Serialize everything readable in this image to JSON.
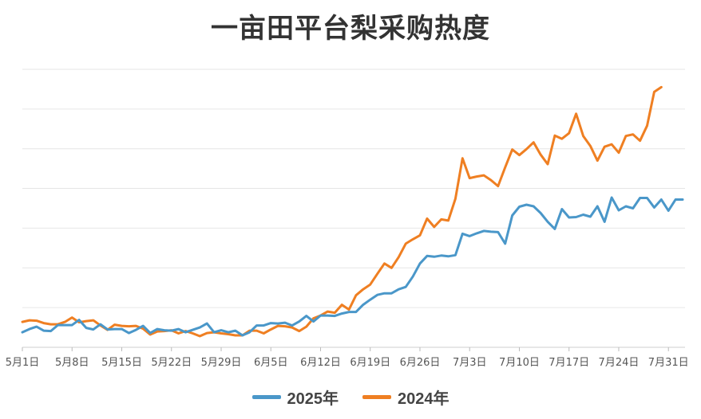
{
  "chart_data": {
    "type": "line",
    "title": "一亩田平台梨采购热度",
    "xlabel": "",
    "ylabel": "",
    "x_tick_labels": [
      "5月1日",
      "5月8日",
      "5月15日",
      "5月22日",
      "5月29日",
      "6月5日",
      "6月12日",
      "6月19日",
      "6月26日",
      "7月3日",
      "7月10日",
      "7月17日",
      "7月24日",
      "7月31日"
    ],
    "ylim": [
      0,
      7.2
    ],
    "y_gridlines": [
      0,
      1,
      2,
      3,
      4,
      5,
      6,
      7
    ],
    "y_tick_labels_shown": false,
    "grid": true,
    "legend_position": "bottom",
    "colors": {
      "2025年": "#4a97c9",
      "2024年": "#ef7f22"
    },
    "series": [
      {
        "name": "2025年",
        "values": [
          0.38,
          0.46,
          0.52,
          0.42,
          0.41,
          0.56,
          0.56,
          0.56,
          0.69,
          0.49,
          0.45,
          0.58,
          0.45,
          0.46,
          0.46,
          0.36,
          0.44,
          0.54,
          0.36,
          0.46,
          0.43,
          0.42,
          0.46,
          0.38,
          0.44,
          0.5,
          0.6,
          0.38,
          0.43,
          0.38,
          0.42,
          0.3,
          0.38,
          0.55,
          0.55,
          0.61,
          0.6,
          0.62,
          0.55,
          0.65,
          0.79,
          0.65,
          0.8,
          0.8,
          0.79,
          0.85,
          0.89,
          0.89,
          1.07,
          1.2,
          1.32,
          1.36,
          1.36,
          1.46,
          1.52,
          1.78,
          2.11,
          2.3,
          2.28,
          2.31,
          2.29,
          2.32,
          2.86,
          2.8,
          2.87,
          2.93,
          2.91,
          2.9,
          2.61,
          3.32,
          3.54,
          3.59,
          3.55,
          3.38,
          3.16,
          2.98,
          3.48,
          3.27,
          3.28,
          3.34,
          3.29,
          3.55,
          3.16,
          3.77,
          3.45,
          3.55,
          3.5,
          3.76,
          3.76,
          3.52,
          3.72,
          3.44,
          3.72,
          3.72
        ]
      },
      {
        "name": "2024年",
        "values": [
          0.64,
          0.68,
          0.67,
          0.61,
          0.58,
          0.58,
          0.64,
          0.75,
          0.63,
          0.66,
          0.68,
          0.55,
          0.44,
          0.57,
          0.54,
          0.53,
          0.54,
          0.47,
          0.32,
          0.4,
          0.41,
          0.43,
          0.35,
          0.41,
          0.35,
          0.28,
          0.36,
          0.38,
          0.35,
          0.33,
          0.3,
          0.3,
          0.42,
          0.42,
          0.35,
          0.45,
          0.54,
          0.53,
          0.5,
          0.41,
          0.52,
          0.73,
          0.8,
          0.9,
          0.87,
          1.07,
          0.95,
          1.31,
          1.46,
          1.58,
          1.85,
          2.11,
          2.0,
          2.27,
          2.61,
          2.72,
          2.82,
          3.24,
          3.03,
          3.22,
          3.19,
          3.74,
          4.76,
          4.26,
          4.3,
          4.33,
          4.21,
          4.06,
          4.53,
          4.98,
          4.84,
          4.99,
          5.16,
          4.85,
          4.61,
          5.33,
          5.25,
          5.39,
          5.88,
          5.32,
          5.07,
          4.7,
          5.05,
          5.11,
          4.9,
          5.32,
          5.36,
          5.2,
          5.58,
          6.43,
          6.55
        ]
      }
    ]
  }
}
